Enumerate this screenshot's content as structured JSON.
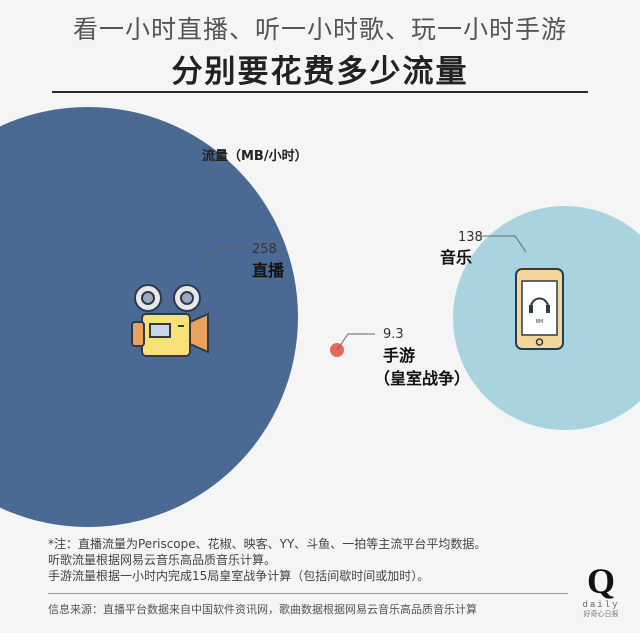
{
  "header": {
    "title": "看一小时直播、听一小时歌、玩一小时手游",
    "subtitle": "分别要花费多少流量"
  },
  "chart_data": {
    "type": "bubble",
    "unit_label": "流量（MB/小时）",
    "items": [
      {
        "name": "直播",
        "value": 258,
        "value_label": "258",
        "color": "#4a6a94",
        "icon": "video-camera-icon"
      },
      {
        "name": "音乐",
        "value": 138,
        "value_label": "138",
        "color": "#a9d4df",
        "icon": "phone-headphones-icon"
      },
      {
        "name": "手游",
        "sub_name": "（皇室战争）",
        "value": 9.3,
        "value_label": "9.3",
        "color": "#e8675a",
        "icon": ""
      }
    ]
  },
  "notes": [
    "*注：直播流量为Periscope、花椒、映客、YY、斗鱼、一拍等主流平台平均数据。",
    "听歌流量根据网易云音乐高品质音乐计算。",
    "手游流量根据一小时内完成15局皇室战争计算（包括间歇时间或加时）。"
  ],
  "source": "信息来源：直播平台数据来自中国软件资讯网，歌曲数据根据网易云音乐高品质音乐计算",
  "logo": {
    "letter": "Q",
    "word": "daily",
    "cn": "好奇心日报"
  }
}
